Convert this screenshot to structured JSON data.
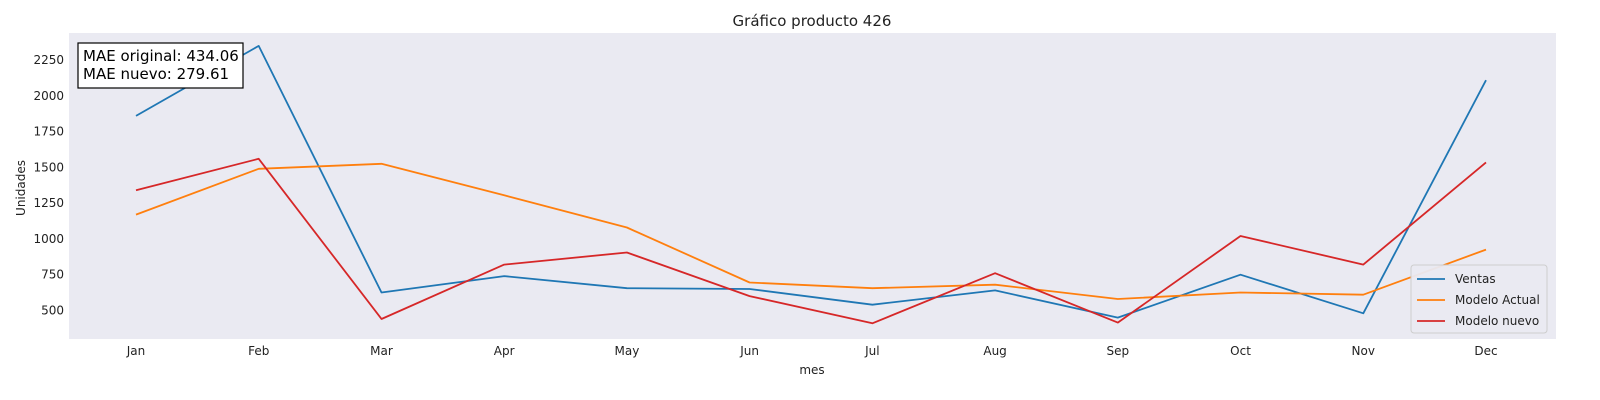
{
  "chart_data": {
    "type": "line",
    "title": "Gráfico producto 426",
    "xlabel": "mes",
    "ylabel": "Unidades",
    "categories": [
      "Jan",
      "Feb",
      "Mar",
      "Apr",
      "May",
      "Jun",
      "Jul",
      "Aug",
      "Sep",
      "Oct",
      "Nov",
      "Dec"
    ],
    "yticks": [
      500,
      750,
      1000,
      1250,
      1500,
      1750,
      2000,
      2250
    ],
    "ylim": [
      300,
      2440
    ],
    "grid": false,
    "legend_position": "bottom-right",
    "annotation": [
      "MAE original: 434.06",
      "MAE nuevo: 279.61"
    ],
    "series": [
      {
        "name": "Ventas",
        "color": "#1f77b4",
        "values": [
          1860,
          2350,
          625,
          740,
          655,
          650,
          540,
          640,
          450,
          750,
          480,
          2110
        ]
      },
      {
        "name": "Modelo Actual",
        "color": "#ff7f0e",
        "values": [
          1170,
          1490,
          1525,
          1305,
          1080,
          695,
          655,
          680,
          580,
          625,
          610,
          925
        ]
      },
      {
        "name": "Modelo nuevo",
        "color": "#d62728",
        "values": [
          1340,
          1560,
          440,
          820,
          905,
          600,
          410,
          760,
          415,
          1020,
          820,
          1535
        ]
      }
    ]
  }
}
